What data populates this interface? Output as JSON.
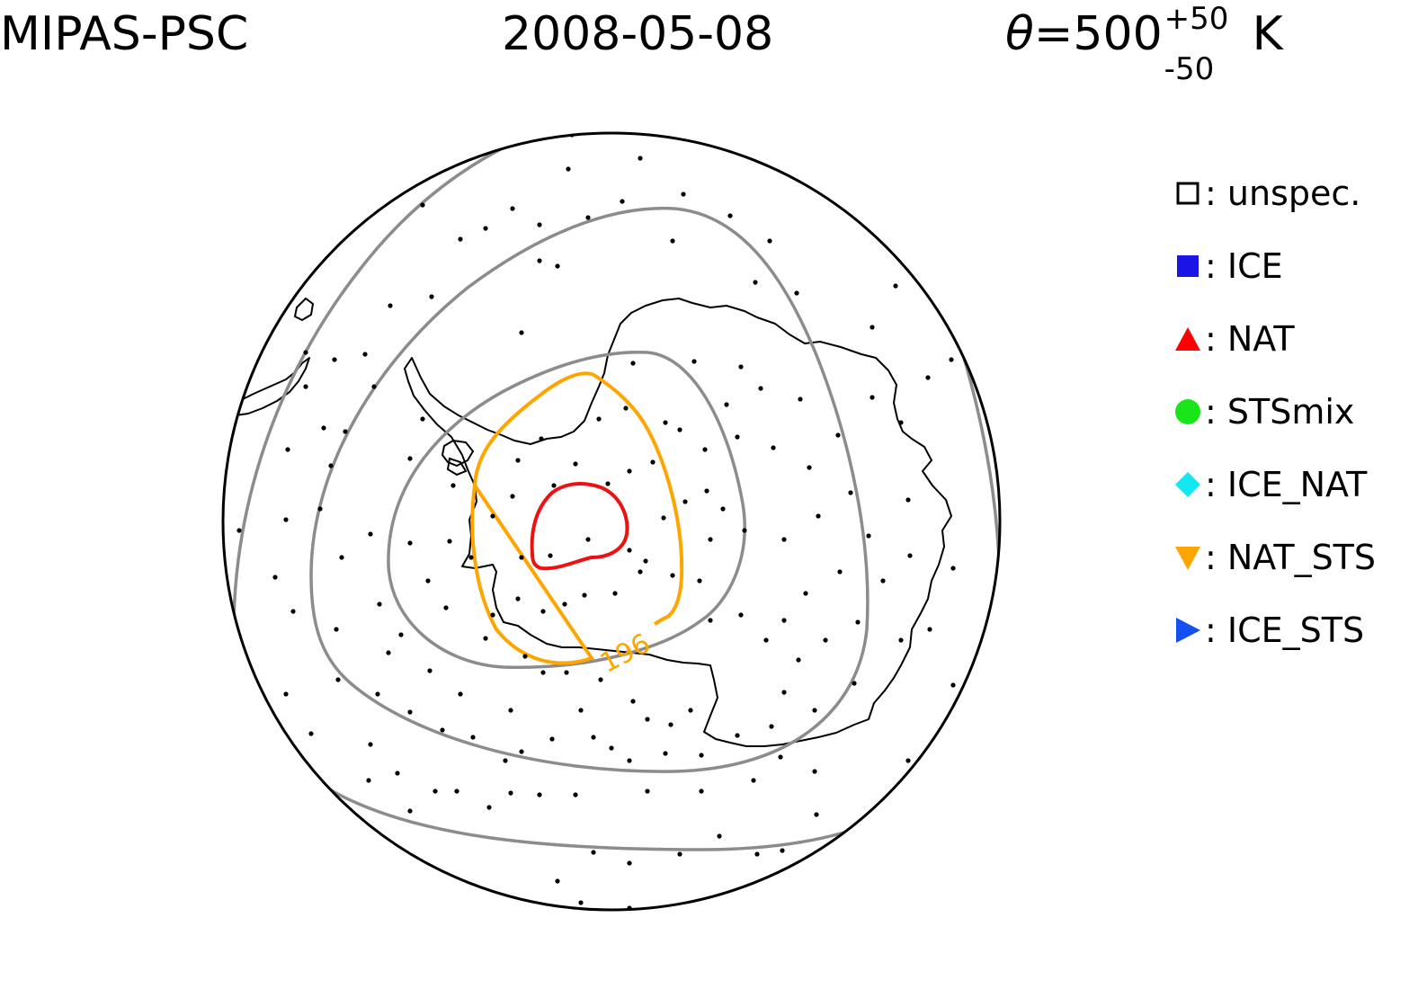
{
  "header": {
    "instrument": "MIPAS-PSC",
    "date": "2008-05-08",
    "theta": {
      "symbol": "θ",
      "equals": "=",
      "value": "500",
      "upper": "+50",
      "lower": "-50",
      "unit": "K"
    }
  },
  "colors": {
    "coast": "#000000",
    "boundary": "#000000",
    "temp_contour": "#8c8c8c",
    "contour_196": "#ffa500",
    "contour_cold": "#ee1111",
    "obs_dot": "#000000",
    "ICE": "#1a14e6",
    "NAT": "#ff0000",
    "STSmix": "#19e619",
    "ICE_NAT": "#11e8f0",
    "NAT_STS": "#ffa500",
    "ICE_STS": "#1450f0"
  },
  "map": {
    "projection": "south-polar-stereographic",
    "contour_label": "196"
  },
  "legend": [
    {
      "label": ": unspec.",
      "marker": "open-square-icon",
      "color": "#000000"
    },
    {
      "label": ": ICE",
      "marker": "filled-square-icon",
      "color": "#1a14e6"
    },
    {
      "label": ": NAT",
      "marker": "triangle-up-icon",
      "color": "#ff0000"
    },
    {
      "label": ": STSmix",
      "marker": "circle-icon",
      "color": "#19e619"
    },
    {
      "label": ": ICE_NAT",
      "marker": "diamond-icon",
      "color": "#11e8f0"
    },
    {
      "label": ": NAT_STS",
      "marker": "triangle-down-icon",
      "color": "#ffa500"
    },
    {
      "label": ": ICE_STS",
      "marker": "triangle-right-icon",
      "color": "#1450f0"
    }
  ]
}
